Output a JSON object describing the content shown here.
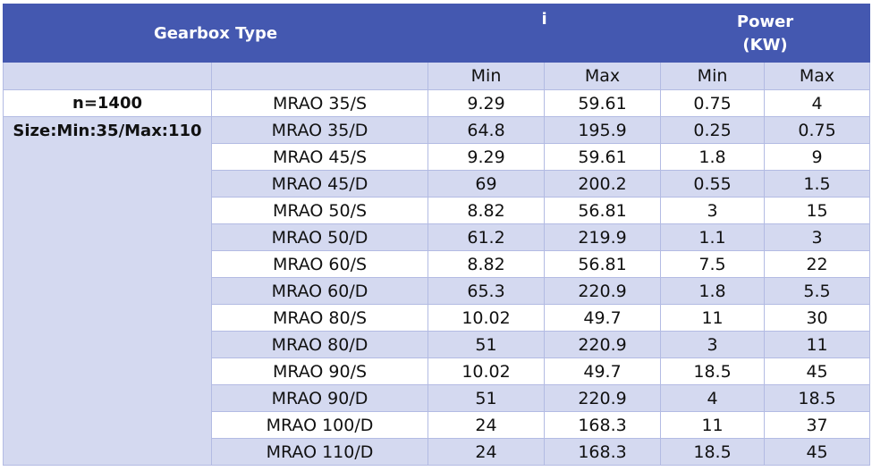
{
  "header": {
    "gearbox_type": "Gearbox Type",
    "i": "i",
    "power_line1": "Power",
    "power_line2": "(KW)"
  },
  "subheader": {
    "i_min": "Min",
    "i_max": "Max",
    "power_min": "Min",
    "power_max": "Max"
  },
  "labels": {
    "speed": "n=1400",
    "size": "Size:Min:35/Max:110"
  },
  "rows": [
    {
      "model": "MRAO 35/S",
      "i_min": "9.29",
      "i_max": "59.61",
      "p_min": "0.75",
      "p_max": "4"
    },
    {
      "model": "MRAO 35/D",
      "i_min": "64.8",
      "i_max": "195.9",
      "p_min": "0.25",
      "p_max": "0.75"
    },
    {
      "model": "MRAO 45/S",
      "i_min": "9.29",
      "i_max": "59.61",
      "p_min": "1.8",
      "p_max": "9"
    },
    {
      "model": "MRAO 45/D",
      "i_min": "69",
      "i_max": "200.2",
      "p_min": "0.55",
      "p_max": "1.5"
    },
    {
      "model": "MRAO 50/S",
      "i_min": "8.82",
      "i_max": "56.81",
      "p_min": "3",
      "p_max": "15"
    },
    {
      "model": "MRAO 50/D",
      "i_min": "61.2",
      "i_max": "219.9",
      "p_min": "1.1",
      "p_max": "3"
    },
    {
      "model": "MRAO 60/S",
      "i_min": "8.82",
      "i_max": "56.81",
      "p_min": "7.5",
      "p_max": "22"
    },
    {
      "model": "MRAO 60/D",
      "i_min": "65.3",
      "i_max": "220.9",
      "p_min": "1.8",
      "p_max": "5.5"
    },
    {
      "model": "MRAO 80/S",
      "i_min": "10.02",
      "i_max": "49.7",
      "p_min": "11",
      "p_max": "30"
    },
    {
      "model": "MRAO 80/D",
      "i_min": "51",
      "i_max": "220.9",
      "p_min": "3",
      "p_max": "11"
    },
    {
      "model": "MRAO 90/S",
      "i_min": "10.02",
      "i_max": "49.7",
      "p_min": "18.5",
      "p_max": "45"
    },
    {
      "model": "MRAO 90/D",
      "i_min": "51",
      "i_max": "220.9",
      "p_min": "4",
      "p_max": "18.5"
    },
    {
      "model": "MRAO 100/D",
      "i_min": "24",
      "i_max": "168.3",
      "p_min": "11",
      "p_max": "37"
    },
    {
      "model": "MRAO 110/D",
      "i_min": "24",
      "i_max": "168.3",
      "p_min": "18.5",
      "p_max": "45"
    }
  ],
  "colors": {
    "header_bg": "#4458b0",
    "band": "#d4d9f0",
    "white": "#ffffff"
  }
}
